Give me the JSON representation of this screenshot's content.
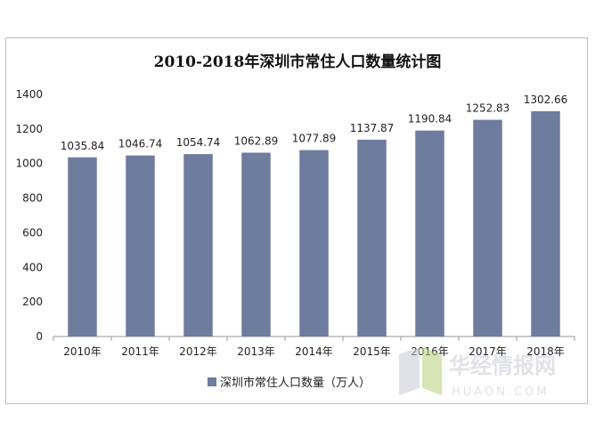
{
  "chart_data": {
    "type": "bar",
    "title": "2010-2018年深圳市常住人口数量统计图",
    "categories": [
      "2010年",
      "2011年",
      "2012年",
      "2013年",
      "2014年",
      "2015年",
      "2016年",
      "2017年",
      "2018年"
    ],
    "series": [
      {
        "name": "深圳市常住人口数量（万人）",
        "values": [
          1035.84,
          1046.74,
          1054.74,
          1062.89,
          1077.89,
          1137.87,
          1190.84,
          1252.83,
          1302.66
        ],
        "labels": [
          "1035.84",
          "1046.74",
          "1054.74",
          "1062.89",
          "1077.89",
          "1137.87",
          "1190.84",
          "1252.83",
          "1302.66"
        ]
      }
    ],
    "ylim": [
      0,
      1400
    ],
    "yticks": [
      "0",
      "200",
      "400",
      "600",
      "800",
      "1000",
      "1200",
      "1400"
    ],
    "xlabel": "",
    "ylabel": "",
    "grid": false,
    "legend": "bottom",
    "bar_color": "#6e7c9e"
  },
  "watermark": {
    "cn": "华经情报网",
    "en": "HUAON.COM"
  }
}
